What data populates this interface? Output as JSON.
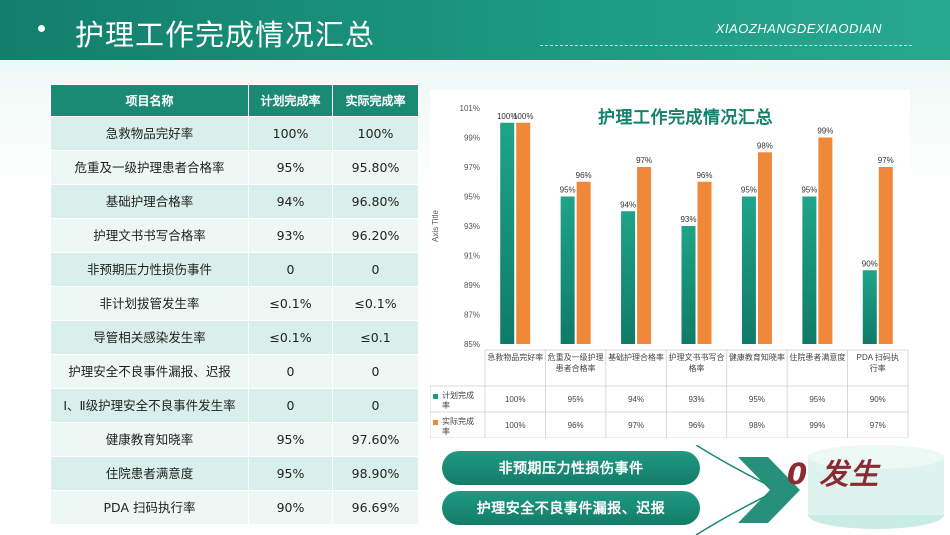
{
  "header": {
    "title": "护理工作完成情况汇总",
    "brand": "XIAOZHANGDEXIAODIAN"
  },
  "table": {
    "headers": [
      "项目名称",
      "计划完成率",
      "实际完成率"
    ],
    "rows": [
      [
        "急救物品完好率",
        "100%",
        "100%"
      ],
      [
        "危重及一级护理患者合格率",
        "95%",
        "95.80%"
      ],
      [
        "基础护理合格率",
        "94%",
        "96.80%"
      ],
      [
        "护理文书书写合格率",
        "93%",
        "96.20%"
      ],
      [
        "非预期压力性损伤事件",
        "0",
        "0"
      ],
      [
        "非计划拔管发生率",
        "≤0.1%",
        "≤0.1%"
      ],
      [
        "导管相关感染发生率",
        "≤0.1%",
        "≤0.1"
      ],
      [
        "护理安全不良事件漏报、迟报",
        "0",
        "0"
      ],
      [
        "Ⅰ、Ⅱ级护理安全不良事件发生率",
        "0",
        "0"
      ],
      [
        "健康教育知晓率",
        "95%",
        "97.60%"
      ],
      [
        "住院患者满意度",
        "95%",
        "98.90%"
      ],
      [
        "PDA 扫码执行率",
        "90%",
        "96.69%"
      ]
    ]
  },
  "chart_data": {
    "type": "bar",
    "title": "护理工作完成情况汇总",
    "ylabel": "Axis Title",
    "ylim": [
      85,
      101
    ],
    "yticks": [
      "85%",
      "87%",
      "89%",
      "91%",
      "93%",
      "95%",
      "97%",
      "99%",
      "101%"
    ],
    "categories": [
      "急救物品完好率",
      "危重及一级护理患者合格率",
      "基础护理合格率",
      "护理文书书写合格率",
      "健康教育知晓率",
      "住院患者满意度",
      "PDA 扫码执行率"
    ],
    "series": [
      {
        "name": "计划完成率",
        "values": [
          100,
          95,
          94,
          93,
          95,
          95,
          90
        ],
        "labels": [
          "100%",
          "95%",
          "94%",
          "93%",
          "95%",
          "95%",
          "90%"
        ],
        "color": "#1a9a82"
      },
      {
        "name": "实际完成率",
        "values": [
          100,
          96,
          97,
          96,
          98,
          99,
          97
        ],
        "labels": [
          "100%",
          "96%",
          "97%",
          "96%",
          "98%",
          "99%",
          "97%"
        ],
        "color": "#f0883a"
      }
    ],
    "grid": false,
    "data_table": true
  },
  "callouts": {
    "item1": "非预期压力性损伤事件",
    "item2": "护理安全不良事件漏报、迟报",
    "result": "0 发生"
  },
  "colors": {
    "primary": "#1b8a74",
    "accent": "#f0883a",
    "result": "#8b2a30"
  }
}
